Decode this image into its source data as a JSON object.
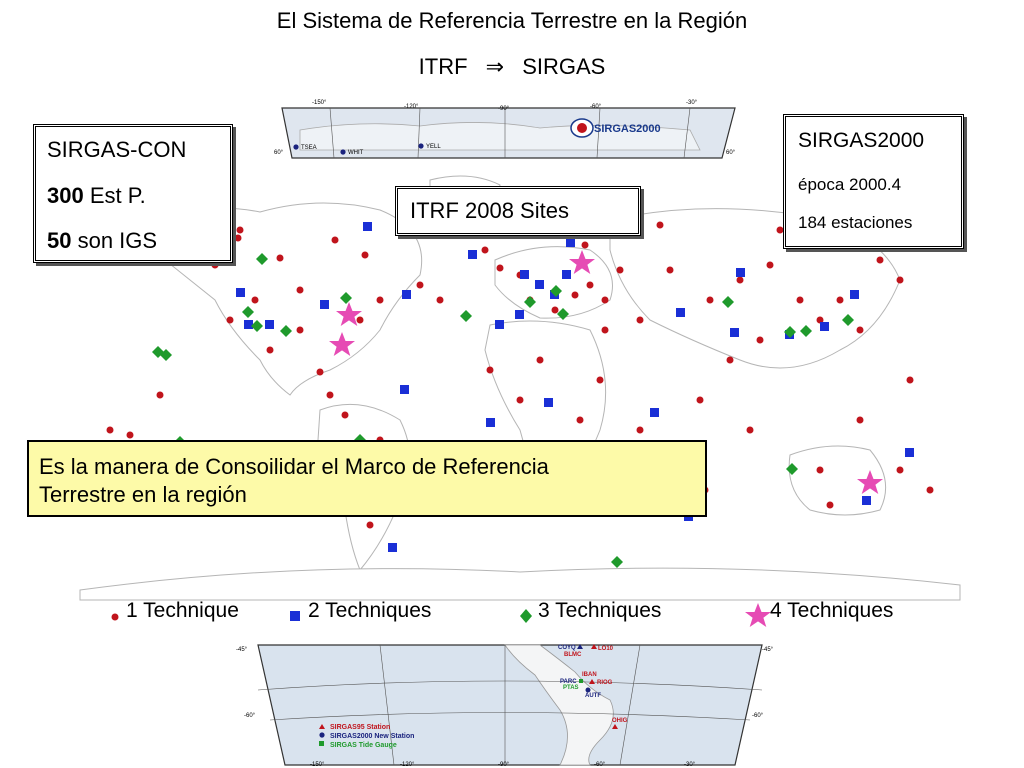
{
  "header": {
    "title": "El Sistema de Referencia Terrestre en la Región",
    "subtitle_left": "ITRF",
    "subtitle_arrow": "⇒",
    "subtitle_right": "SIRGAS"
  },
  "sirgas_con_box": {
    "line1": "SIRGAS-CON",
    "line2_bold": "300",
    "line2_rest": " Est P.",
    "line3_bold": "50",
    "line3_rest": " son IGS"
  },
  "sirgas2000_box": {
    "title": "SIRGAS2000",
    "line2": "época 2000.4",
    "line3": "184 estaciones"
  },
  "itrf_box": {
    "label": "ITRF 2008 Sites"
  },
  "note_box": {
    "line1": "Es la manera de Consoilidar el Marco de Referencia",
    "line2": "Terrestre en la región"
  },
  "legend": {
    "item1": "1 Technique",
    "item2": "2 Techniques",
    "item3": "3 Techniques",
    "item4": "4 Techniques"
  },
  "north_inset": {
    "logo_text": "SIRGAS2000",
    "lon_labels": [
      "-150°",
      "-120°",
      "-90°",
      "-60°",
      "-30°"
    ],
    "lat_left": "60°",
    "lat_right": "60°",
    "stations": [
      "TSEA",
      "WHIT",
      "YELL"
    ]
  },
  "south_inset": {
    "lon_labels": [
      "-150°",
      "-120°",
      "-90°",
      "-60°",
      "-30°"
    ],
    "lat_top_left": "-45°",
    "lat_top_right": "-45°",
    "lat_mid_left": "-60°",
    "lat_mid_right": "-60°",
    "stations": [
      "COYQ",
      "LO10",
      "BLMC",
      "IBAN",
      "PARC",
      "RIOG",
      "PTAS",
      "AUTF",
      "OHIG"
    ],
    "legend": [
      "SIRGAS95 Station",
      "SIRGAS2000 New Station",
      "SIRGAS Tide Gauge"
    ]
  },
  "colors": {
    "technique1": "#c0141c",
    "technique2": "#1a2fd6",
    "technique3": "#1f9a2c",
    "technique4": "#e64bb4",
    "note_bg": "#fdfaa8",
    "land": "#ffffff",
    "coast": "#b5b5b5",
    "inset_water": "#d9e3ee"
  }
}
